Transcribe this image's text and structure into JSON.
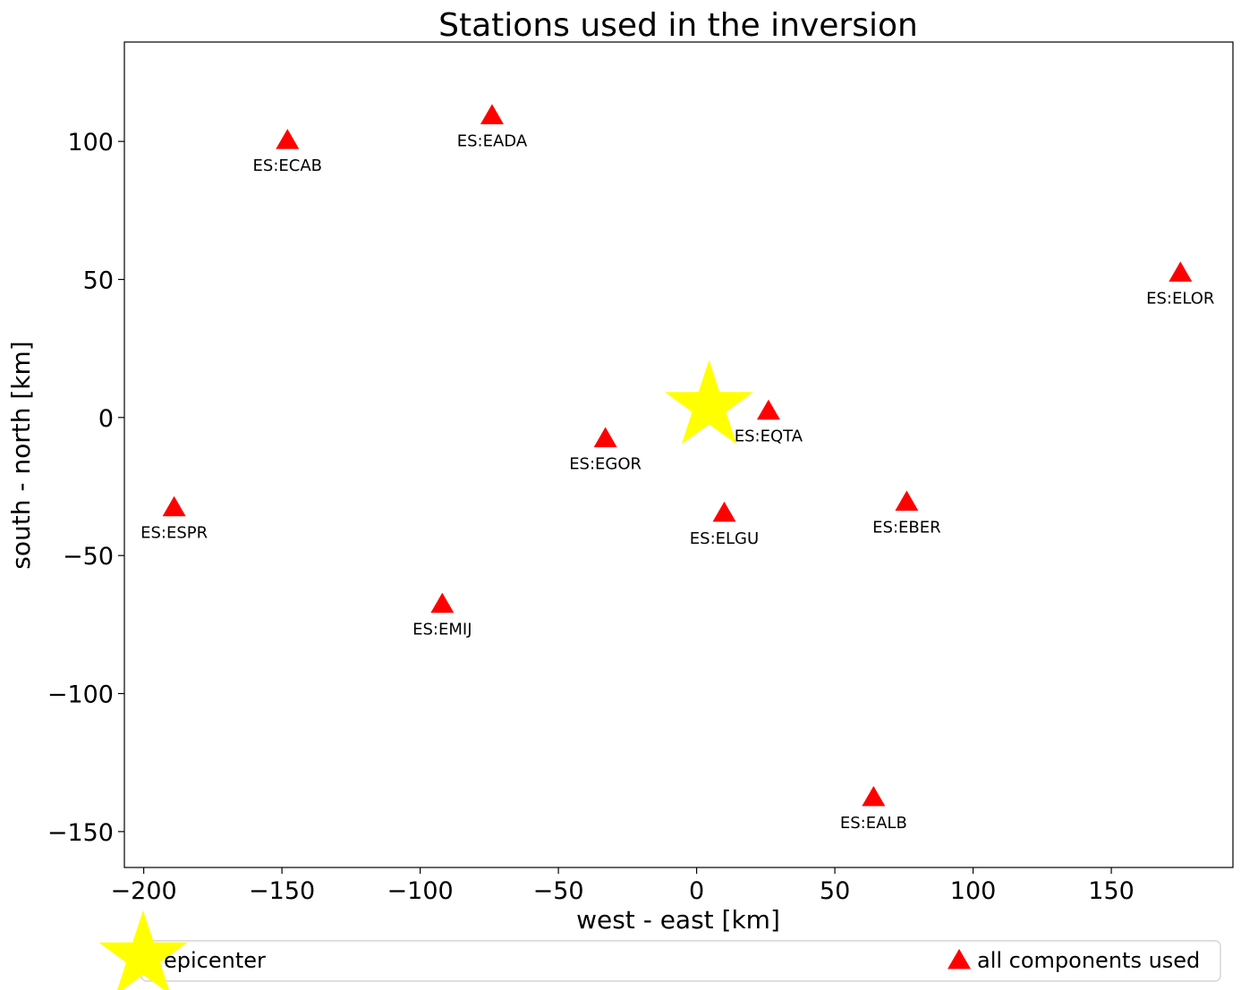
{
  "chart_data": {
    "type": "scatter",
    "title": "Stations used in the inversion",
    "xlabel": "west - east [km]",
    "ylabel": "south - north [km]",
    "xlim": [
      -207,
      194
    ],
    "ylim": [
      -163,
      136
    ],
    "xticks": [
      -200,
      -150,
      -100,
      -50,
      0,
      50,
      100,
      150
    ],
    "xtick_labels": [
      "−200",
      "−150",
      "−100",
      "−50",
      "0",
      "50",
      "100",
      "150"
    ],
    "yticks": [
      100,
      50,
      0,
      -50,
      -100,
      -150
    ],
    "ytick_labels": [
      "100",
      "50",
      "0",
      "−50",
      "−100",
      "−150"
    ],
    "grid": false,
    "legend_placement": "below",
    "series": [
      {
        "name": "epicenter",
        "marker": "star",
        "color": "#ffff00",
        "points": [
          {
            "x": 4.5,
            "y": 4.0
          }
        ]
      },
      {
        "name": "all components used",
        "marker": "triangle",
        "color": "#ff0000",
        "points": [
          {
            "x": -148,
            "y": 100,
            "label": "ES:ECAB"
          },
          {
            "x": -74,
            "y": 109,
            "label": "ES:EADA"
          },
          {
            "x": 175,
            "y": 52,
            "label": "ES:ELOR"
          },
          {
            "x": 26,
            "y": 2,
            "label": "ES:EQTA"
          },
          {
            "x": -33,
            "y": -8,
            "label": "ES:EGOR"
          },
          {
            "x": -189,
            "y": -33,
            "label": "ES:ESPR"
          },
          {
            "x": 10,
            "y": -35,
            "label": "ES:ELGU"
          },
          {
            "x": 76,
            "y": -31,
            "label": "ES:EBER"
          },
          {
            "x": -92,
            "y": -68,
            "label": "ES:EMIJ"
          },
          {
            "x": 64,
            "y": -138,
            "label": "ES:EALB"
          }
        ]
      }
    ]
  }
}
